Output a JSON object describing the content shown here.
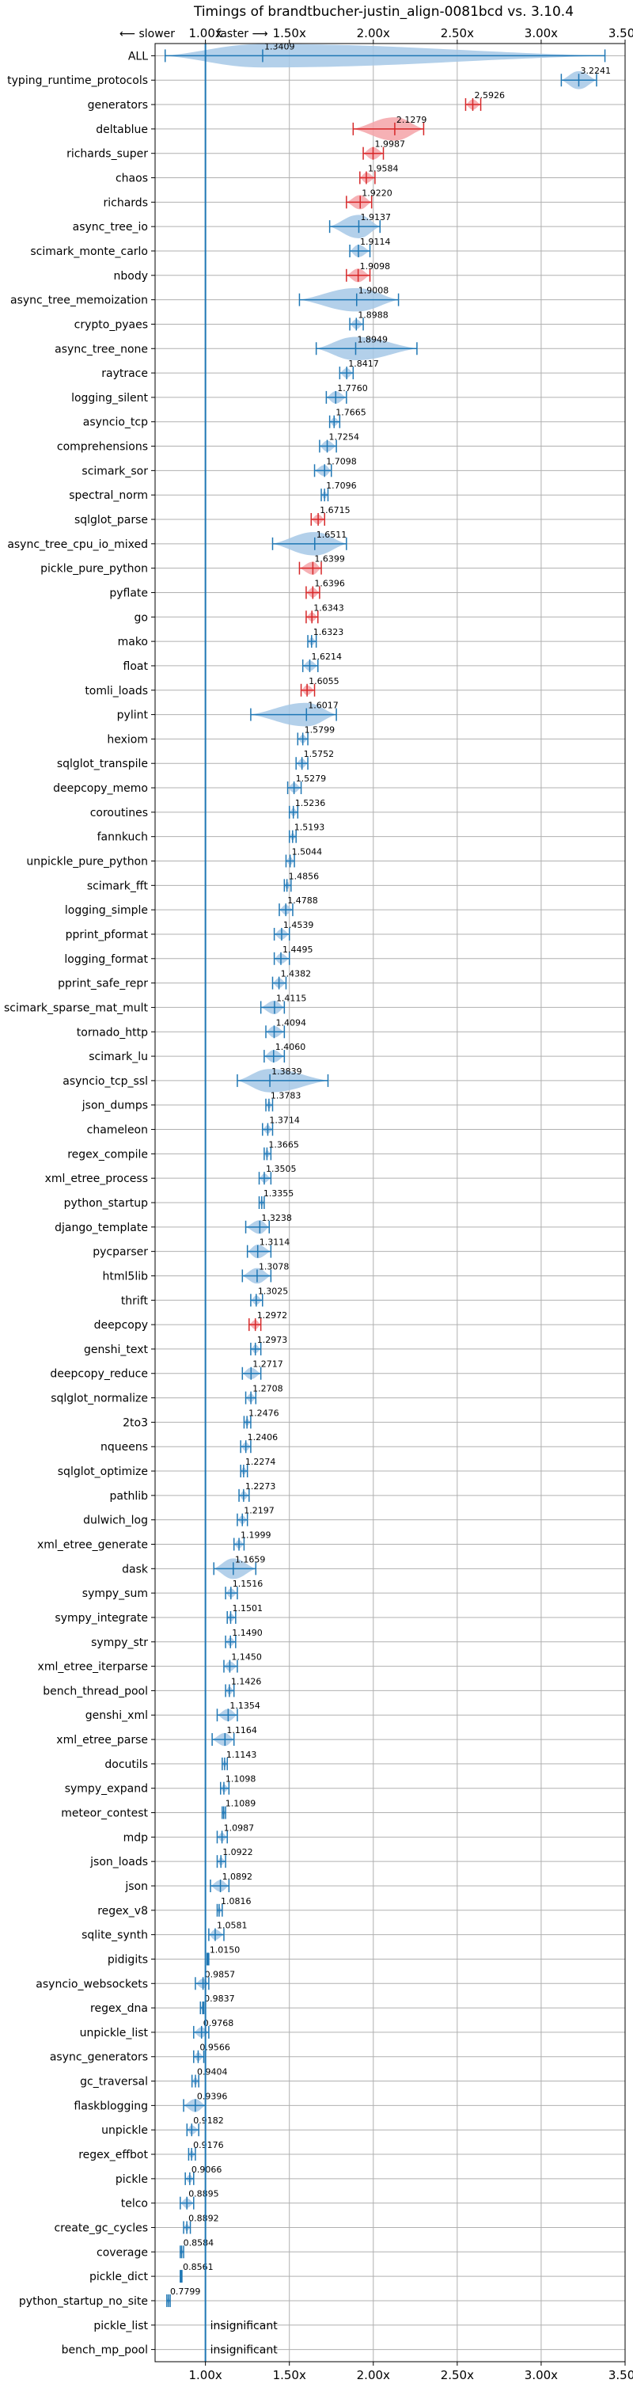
{
  "chart_data": {
    "type": "violin",
    "title": "Timings of brandtbucher-justin_align-0081bcd vs. 3.10.4",
    "direction_slower": "⟵ slower",
    "direction_faster": "faster ⟶",
    "xlim": [
      0.7,
      3.5
    ],
    "x_ticks": [
      1.0,
      1.5,
      2.0,
      2.5,
      3.0,
      3.5
    ],
    "x_tick_labels": [
      "1.00x",
      "1.50x",
      "2.00x",
      "2.50x",
      "3.00x",
      "3.50x"
    ],
    "reference_line": 1.0,
    "grid": true,
    "colors": {
      "faster": "#1f77b4",
      "slower": "#d62728",
      "violin_blue": "#a6c8e6",
      "violin_red": "#f4a3a8",
      "reference": "#1f77b4"
    },
    "insignificant_label": "insignificant",
    "benchmarks": [
      {
        "name": "ALL",
        "value": 1.3409,
        "label": "1.3409",
        "lo": 0.76,
        "hi": 3.38
      },
      {
        "name": "typing_runtime_protocols",
        "value": 3.2241,
        "label": "3.2241",
        "lo": 3.12,
        "hi": 3.33
      },
      {
        "name": "generators",
        "value": 2.5926,
        "label": "2.5926",
        "lo": 2.55,
        "hi": 2.64
      },
      {
        "name": "deltablue",
        "value": 2.1279,
        "label": "2.1279",
        "lo": 1.88,
        "hi": 2.3
      },
      {
        "name": "richards_super",
        "value": 1.9987,
        "label": "1.9987",
        "lo": 1.94,
        "hi": 2.06
      },
      {
        "name": "chaos",
        "value": 1.9584,
        "label": "1.9584",
        "lo": 1.92,
        "hi": 2.01
      },
      {
        "name": "richards",
        "value": 1.922,
        "label": "1.9220",
        "lo": 1.84,
        "hi": 1.99
      },
      {
        "name": "async_tree_io",
        "value": 1.9137,
        "label": "1.9137",
        "lo": 1.74,
        "hi": 2.04
      },
      {
        "name": "scimark_monte_carlo",
        "value": 1.9114,
        "label": "1.9114",
        "lo": 1.86,
        "hi": 1.98
      },
      {
        "name": "nbody",
        "value": 1.9098,
        "label": "1.9098",
        "lo": 1.84,
        "hi": 1.98
      },
      {
        "name": "async_tree_memoization",
        "value": 1.9008,
        "label": "1.9008",
        "lo": 1.56,
        "hi": 2.15
      },
      {
        "name": "crypto_pyaes",
        "value": 1.8988,
        "label": "1.8988",
        "lo": 1.86,
        "hi": 1.94
      },
      {
        "name": "async_tree_none",
        "value": 1.8949,
        "label": "1.8949",
        "lo": 1.66,
        "hi": 2.26
      },
      {
        "name": "raytrace",
        "value": 1.8417,
        "label": "1.8417",
        "lo": 1.8,
        "hi": 1.88
      },
      {
        "name": "logging_silent",
        "value": 1.776,
        "label": "1.7760",
        "lo": 1.72,
        "hi": 1.84
      },
      {
        "name": "asyncio_tcp",
        "value": 1.7665,
        "label": "1.7665",
        "lo": 1.74,
        "hi": 1.8
      },
      {
        "name": "comprehensions",
        "value": 1.7254,
        "label": "1.7254",
        "lo": 1.68,
        "hi": 1.78
      },
      {
        "name": "scimark_sor",
        "value": 1.7098,
        "label": "1.7098",
        "lo": 1.65,
        "hi": 1.75
      },
      {
        "name": "spectral_norm",
        "value": 1.7096,
        "label": "1.7096",
        "lo": 1.69,
        "hi": 1.73
      },
      {
        "name": "sqlglot_parse",
        "value": 1.6715,
        "label": "1.6715",
        "lo": 1.63,
        "hi": 1.71
      },
      {
        "name": "async_tree_cpu_io_mixed",
        "value": 1.6511,
        "label": "1.6511",
        "lo": 1.4,
        "hi": 1.84
      },
      {
        "name": "pickle_pure_python",
        "value": 1.6399,
        "label": "1.6399",
        "lo": 1.56,
        "hi": 1.69
      },
      {
        "name": "pyflate",
        "value": 1.6396,
        "label": "1.6396",
        "lo": 1.6,
        "hi": 1.68
      },
      {
        "name": "go",
        "value": 1.6343,
        "label": "1.6343",
        "lo": 1.6,
        "hi": 1.67
      },
      {
        "name": "mako",
        "value": 1.6323,
        "label": "1.6323",
        "lo": 1.61,
        "hi": 1.66
      },
      {
        "name": "float",
        "value": 1.6214,
        "label": "1.6214",
        "lo": 1.58,
        "hi": 1.67
      },
      {
        "name": "tomli_loads",
        "value": 1.6055,
        "label": "1.6055",
        "lo": 1.57,
        "hi": 1.65
      },
      {
        "name": "pylint",
        "value": 1.6017,
        "label": "1.6017",
        "lo": 1.27,
        "hi": 1.78
      },
      {
        "name": "hexiom",
        "value": 1.5799,
        "label": "1.5799",
        "lo": 1.55,
        "hi": 1.61
      },
      {
        "name": "sqlglot_transpile",
        "value": 1.5752,
        "label": "1.5752",
        "lo": 1.54,
        "hi": 1.61
      },
      {
        "name": "deepcopy_memo",
        "value": 1.5279,
        "label": "1.5279",
        "lo": 1.49,
        "hi": 1.57
      },
      {
        "name": "coroutines",
        "value": 1.5236,
        "label": "1.5236",
        "lo": 1.5,
        "hi": 1.55
      },
      {
        "name": "fannkuch",
        "value": 1.5193,
        "label": "1.5193",
        "lo": 1.5,
        "hi": 1.54
      },
      {
        "name": "unpickle_pure_python",
        "value": 1.5044,
        "label": "1.5044",
        "lo": 1.48,
        "hi": 1.53
      },
      {
        "name": "scimark_fft",
        "value": 1.4856,
        "label": "1.4856",
        "lo": 1.47,
        "hi": 1.51
      },
      {
        "name": "logging_simple",
        "value": 1.4788,
        "label": "1.4788",
        "lo": 1.44,
        "hi": 1.52
      },
      {
        "name": "pprint_pformat",
        "value": 1.4539,
        "label": "1.4539",
        "lo": 1.41,
        "hi": 1.5
      },
      {
        "name": "logging_format",
        "value": 1.4495,
        "label": "1.4495",
        "lo": 1.41,
        "hi": 1.5
      },
      {
        "name": "pprint_safe_repr",
        "value": 1.4382,
        "label": "1.4382",
        "lo": 1.4,
        "hi": 1.48
      },
      {
        "name": "scimark_sparse_mat_mult",
        "value": 1.4115,
        "label": "1.4115",
        "lo": 1.33,
        "hi": 1.47
      },
      {
        "name": "tornado_http",
        "value": 1.4094,
        "label": "1.4094",
        "lo": 1.36,
        "hi": 1.47
      },
      {
        "name": "scimark_lu",
        "value": 1.406,
        "label": "1.4060",
        "lo": 1.35,
        "hi": 1.47
      },
      {
        "name": "asyncio_tcp_ssl",
        "value": 1.3839,
        "label": "1.3839",
        "lo": 1.19,
        "hi": 1.73
      },
      {
        "name": "json_dumps",
        "value": 1.3783,
        "label": "1.3783",
        "lo": 1.36,
        "hi": 1.4
      },
      {
        "name": "chameleon",
        "value": 1.3714,
        "label": "1.3714",
        "lo": 1.34,
        "hi": 1.4
      },
      {
        "name": "regex_compile",
        "value": 1.3665,
        "label": "1.3665",
        "lo": 1.35,
        "hi": 1.39
      },
      {
        "name": "xml_etree_process",
        "value": 1.3505,
        "label": "1.3505",
        "lo": 1.32,
        "hi": 1.39
      },
      {
        "name": "python_startup",
        "value": 1.3355,
        "label": "1.3355",
        "lo": 1.32,
        "hi": 1.35
      },
      {
        "name": "django_template",
        "value": 1.3238,
        "label": "1.3238",
        "lo": 1.24,
        "hi": 1.38
      },
      {
        "name": "pycparser",
        "value": 1.3114,
        "label": "1.3114",
        "lo": 1.25,
        "hi": 1.39
      },
      {
        "name": "html5lib",
        "value": 1.3078,
        "label": "1.3078",
        "lo": 1.22,
        "hi": 1.39
      },
      {
        "name": "thrift",
        "value": 1.3025,
        "label": "1.3025",
        "lo": 1.27,
        "hi": 1.34
      },
      {
        "name": "deepcopy",
        "value": 1.2972,
        "label": "1.2972",
        "lo": 1.26,
        "hi": 1.33
      },
      {
        "name": "genshi_text",
        "value": 1.2973,
        "label": "1.2973",
        "lo": 1.27,
        "hi": 1.33
      },
      {
        "name": "deepcopy_reduce",
        "value": 1.2717,
        "label": "1.2717",
        "lo": 1.22,
        "hi": 1.33
      },
      {
        "name": "sqlglot_normalize",
        "value": 1.2708,
        "label": "1.2708",
        "lo": 1.24,
        "hi": 1.3
      },
      {
        "name": "2to3",
        "value": 1.2476,
        "label": "1.2476",
        "lo": 1.23,
        "hi": 1.27
      },
      {
        "name": "nqueens",
        "value": 1.2406,
        "label": "1.2406",
        "lo": 1.21,
        "hi": 1.27
      },
      {
        "name": "sqlglot_optimize",
        "value": 1.2274,
        "label": "1.2274",
        "lo": 1.21,
        "hi": 1.25
      },
      {
        "name": "pathlib",
        "value": 1.2273,
        "label": "1.2273",
        "lo": 1.2,
        "hi": 1.26
      },
      {
        "name": "dulwich_log",
        "value": 1.2197,
        "label": "1.2197",
        "lo": 1.19,
        "hi": 1.25
      },
      {
        "name": "xml_etree_generate",
        "value": 1.1999,
        "label": "1.1999",
        "lo": 1.17,
        "hi": 1.23
      },
      {
        "name": "dask",
        "value": 1.1659,
        "label": "1.1659",
        "lo": 1.05,
        "hi": 1.3
      },
      {
        "name": "sympy_sum",
        "value": 1.1516,
        "label": "1.1516",
        "lo": 1.12,
        "hi": 1.19
      },
      {
        "name": "sympy_integrate",
        "value": 1.1501,
        "label": "1.1501",
        "lo": 1.13,
        "hi": 1.18
      },
      {
        "name": "sympy_str",
        "value": 1.149,
        "label": "1.1490",
        "lo": 1.12,
        "hi": 1.18
      },
      {
        "name": "xml_etree_iterparse",
        "value": 1.145,
        "label": "1.1450",
        "lo": 1.11,
        "hi": 1.19
      },
      {
        "name": "bench_thread_pool",
        "value": 1.1426,
        "label": "1.1426",
        "lo": 1.12,
        "hi": 1.17
      },
      {
        "name": "genshi_xml",
        "value": 1.1354,
        "label": "1.1354",
        "lo": 1.07,
        "hi": 1.19
      },
      {
        "name": "xml_etree_parse",
        "value": 1.1164,
        "label": "1.1164",
        "lo": 1.04,
        "hi": 1.17
      },
      {
        "name": "docutils",
        "value": 1.1143,
        "label": "1.1143",
        "lo": 1.1,
        "hi": 1.13
      },
      {
        "name": "sympy_expand",
        "value": 1.1098,
        "label": "1.1098",
        "lo": 1.09,
        "hi": 1.14
      },
      {
        "name": "meteor_contest",
        "value": 1.1089,
        "label": "1.1089",
        "lo": 1.1,
        "hi": 1.12
      },
      {
        "name": "mdp",
        "value": 1.0987,
        "label": "1.0987",
        "lo": 1.07,
        "hi": 1.13
      },
      {
        "name": "json_loads",
        "value": 1.0922,
        "label": "1.0922",
        "lo": 1.07,
        "hi": 1.12
      },
      {
        "name": "json",
        "value": 1.0892,
        "label": "1.0892",
        "lo": 1.03,
        "hi": 1.14
      },
      {
        "name": "regex_v8",
        "value": 1.0816,
        "label": "1.0816",
        "lo": 1.07,
        "hi": 1.1
      },
      {
        "name": "sqlite_synth",
        "value": 1.0581,
        "label": "1.0581",
        "lo": 1.02,
        "hi": 1.11
      },
      {
        "name": "pidigits",
        "value": 1.015,
        "label": "1.0150",
        "lo": 1.01,
        "hi": 1.02
      },
      {
        "name": "asyncio_websockets",
        "value": 0.9857,
        "label": "0.9857",
        "lo": 0.94,
        "hi": 1.02
      },
      {
        "name": "regex_dna",
        "value": 0.9837,
        "label": "0.9837",
        "lo": 0.97,
        "hi": 0.99
      },
      {
        "name": "unpickle_list",
        "value": 0.9768,
        "label": "0.9768",
        "lo": 0.93,
        "hi": 1.02
      },
      {
        "name": "async_generators",
        "value": 0.9566,
        "label": "0.9566",
        "lo": 0.93,
        "hi": 0.99
      },
      {
        "name": "gc_traversal",
        "value": 0.9404,
        "label": "0.9404",
        "lo": 0.92,
        "hi": 0.96
      },
      {
        "name": "flaskblogging",
        "value": 0.9396,
        "label": "0.9396",
        "lo": 0.87,
        "hi": 1.0
      },
      {
        "name": "unpickle",
        "value": 0.9182,
        "label": "0.9182",
        "lo": 0.89,
        "hi": 0.96
      },
      {
        "name": "regex_effbot",
        "value": 0.9176,
        "label": "0.9176",
        "lo": 0.9,
        "hi": 0.94
      },
      {
        "name": "pickle",
        "value": 0.9066,
        "label": "0.9066",
        "lo": 0.88,
        "hi": 0.93
      },
      {
        "name": "telco",
        "value": 0.8895,
        "label": "0.8895",
        "lo": 0.85,
        "hi": 0.93
      },
      {
        "name": "create_gc_cycles",
        "value": 0.8892,
        "label": "0.8892",
        "lo": 0.87,
        "hi": 0.91
      },
      {
        "name": "coverage",
        "value": 0.8584,
        "label": "0.8584",
        "lo": 0.85,
        "hi": 0.87
      },
      {
        "name": "pickle_dict",
        "value": 0.8561,
        "label": "0.8561",
        "lo": 0.85,
        "hi": 0.86
      },
      {
        "name": "python_startup_no_site",
        "value": 0.7799,
        "label": "0.7799",
        "lo": 0.77,
        "hi": 0.79
      },
      {
        "name": "pickle_list",
        "value": null,
        "label": "insignificant"
      },
      {
        "name": "bench_mp_pool",
        "value": null,
        "label": "insignificant"
      }
    ]
  }
}
